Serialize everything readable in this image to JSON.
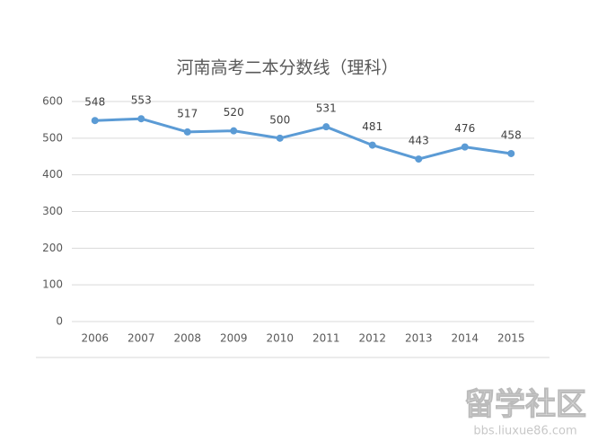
{
  "chart_data": {
    "type": "line",
    "title": "河南高考二本分数线（理科）",
    "categories": [
      "2006",
      "2007",
      "2008",
      "2009",
      "2010",
      "2011",
      "2012",
      "2013",
      "2014",
      "2015"
    ],
    "values": [
      548,
      553,
      517,
      520,
      500,
      531,
      481,
      443,
      476,
      458
    ],
    "color": "#5b9bd5",
    "ylim": [
      0,
      600
    ],
    "yticks": [
      0,
      100,
      200,
      300,
      400,
      500,
      600
    ],
    "grid": true
  },
  "watermark": {
    "name": "留学社区",
    "url": "bbs.liuxue86.com"
  }
}
